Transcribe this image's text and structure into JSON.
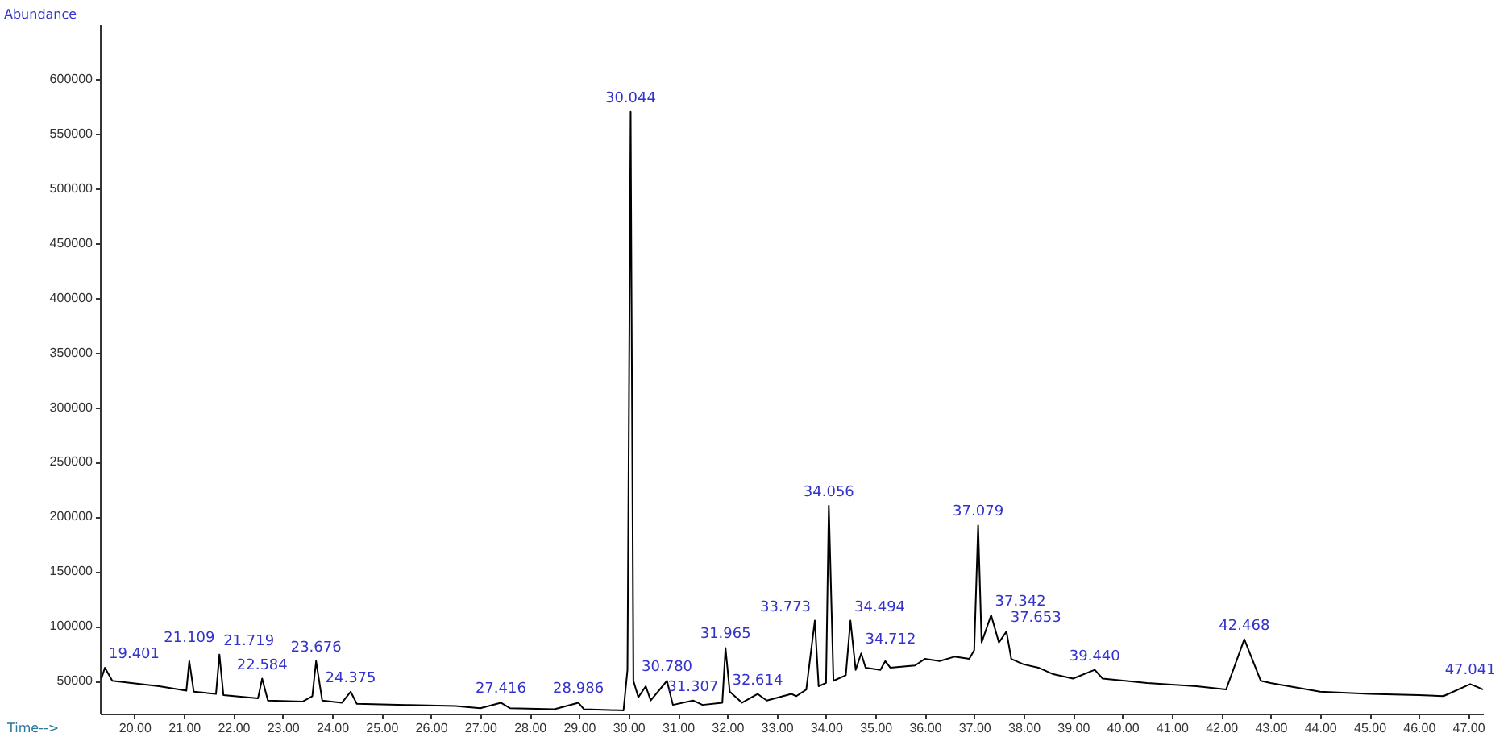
{
  "chart_data": {
    "type": "line",
    "xlabel": "Time-->",
    "ylabel": "Abundance",
    "x": [
      19.33,
      19.4,
      19.55,
      20.5,
      21.05,
      21.109,
      21.2,
      21.65,
      21.719,
      21.8,
      22.5,
      22.584,
      22.7,
      23.4,
      23.6,
      23.676,
      23.8,
      24.2,
      24.375,
      24.5,
      25.5,
      26.5,
      27.0,
      27.416,
      27.6,
      28.5,
      28.986,
      29.1,
      29.9,
      29.98,
      30.044,
      30.1,
      30.2,
      30.35,
      30.45,
      30.78,
      30.9,
      31.307,
      31.5,
      31.9,
      31.965,
      32.05,
      32.3,
      32.614,
      32.8,
      33.3,
      33.4,
      33.6,
      33.773,
      33.85,
      34.0,
      34.056,
      34.15,
      34.4,
      34.494,
      34.6,
      34.712,
      34.8,
      35.1,
      35.2,
      35.3,
      35.8,
      36.0,
      36.3,
      36.6,
      36.9,
      37.0,
      37.079,
      37.15,
      37.342,
      37.5,
      37.653,
      37.75,
      38.0,
      38.3,
      38.6,
      39.0,
      39.44,
      39.6,
      40.5,
      41.5,
      42.1,
      42.468,
      42.8,
      43.0,
      44.0,
      45.0,
      46.0,
      46.5,
      47.041,
      47.2,
      47.3
    ],
    "series": [
      {
        "color": "#000000",
        "values": [
          52000,
          62000,
          50000,
          45000,
          41000,
          68000,
          40000,
          38000,
          74000,
          37000,
          34000,
          52000,
          32000,
          31000,
          36000,
          68000,
          32000,
          30000,
          40000,
          29000,
          28000,
          27000,
          25000,
          30000,
          25000,
          24000,
          30000,
          24000,
          23000,
          60000,
          570000,
          50000,
          35000,
          45000,
          32000,
          50000,
          28000,
          32000,
          28000,
          30000,
          80000,
          40000,
          30000,
          38000,
          32000,
          38000,
          36000,
          42000,
          105000,
          45000,
          48000,
          210000,
          50000,
          55000,
          105000,
          60000,
          75000,
          62000,
          60000,
          68000,
          62000,
          64000,
          70000,
          68000,
          72000,
          70000,
          78000,
          192000,
          85000,
          110000,
          85000,
          95000,
          70000,
          65000,
          62000,
          56000,
          52000,
          60000,
          52000,
          48000,
          45000,
          42000,
          88000,
          50000,
          48000,
          40000,
          38000,
          37000,
          36000,
          47000,
          44000,
          42000
        ]
      }
    ],
    "xlim": [
      19.3,
      47.3
    ],
    "ylim": [
      20000,
      650000
    ],
    "xticks": [
      {
        "value": 20,
        "label": "20.00"
      },
      {
        "value": 21,
        "label": "21.00"
      },
      {
        "value": 22,
        "label": "22.00"
      },
      {
        "value": 23,
        "label": "23.00"
      },
      {
        "value": 24,
        "label": "24.00"
      },
      {
        "value": 25,
        "label": "25.00"
      },
      {
        "value": 26,
        "label": "26.00"
      },
      {
        "value": 27,
        "label": "27.00"
      },
      {
        "value": 28,
        "label": "28.00"
      },
      {
        "value": 29,
        "label": "29.00"
      },
      {
        "value": 30,
        "label": "30.00"
      },
      {
        "value": 31,
        "label": "31.00"
      },
      {
        "value": 32,
        "label": "32.00"
      },
      {
        "value": 33,
        "label": "33.00"
      },
      {
        "value": 34,
        "label": "34.00"
      },
      {
        "value": 35,
        "label": "35.00"
      },
      {
        "value": 36,
        "label": "36.00"
      },
      {
        "value": 37,
        "label": "37.00"
      },
      {
        "value": 38,
        "label": "38.00"
      },
      {
        "value": 39,
        "label": "39.00"
      },
      {
        "value": 40,
        "label": "40.00"
      },
      {
        "value": 41,
        "label": "41.00"
      },
      {
        "value": 42,
        "label": "42.00"
      },
      {
        "value": 43,
        "label": "43.00"
      },
      {
        "value": 44,
        "label": "44.00"
      },
      {
        "value": 45,
        "label": "45.00"
      },
      {
        "value": 46,
        "label": "46.00"
      },
      {
        "value": 47,
        "label": "47.00"
      }
    ],
    "yticks": [
      50000,
      100000,
      150000,
      200000,
      250000,
      300000,
      350000,
      400000,
      450000,
      500000,
      550000,
      600000
    ],
    "line_style": "solid",
    "annotations": [
      {
        "text": "19.401",
        "x": 19.4,
        "y": 62000
      },
      {
        "text": "21.109",
        "x": 21.109,
        "y": 68000
      },
      {
        "text": "21.719",
        "x": 21.719,
        "y": 74000
      },
      {
        "text": "22.584",
        "x": 22.584,
        "y": 52000
      },
      {
        "text": "23.676",
        "x": 23.676,
        "y": 68000
      },
      {
        "text": "24.375",
        "x": 24.375,
        "y": 40000
      },
      {
        "text": "27.416",
        "x": 27.416,
        "y": 30000
      },
      {
        "text": "28.986",
        "x": 28.986,
        "y": 30000
      },
      {
        "text": "30.044",
        "x": 30.044,
        "y": 570000
      },
      {
        "text": "30.780",
        "x": 30.78,
        "y": 50000
      },
      {
        "text": "31.307",
        "x": 31.307,
        "y": 32000
      },
      {
        "text": "31.965",
        "x": 31.965,
        "y": 80000
      },
      {
        "text": "32.614",
        "x": 32.614,
        "y": 38000
      },
      {
        "text": "33.773",
        "x": 33.773,
        "y": 105000
      },
      {
        "text": "34.056",
        "x": 34.056,
        "y": 210000
      },
      {
        "text": "34.494",
        "x": 34.494,
        "y": 105000
      },
      {
        "text": "34.712",
        "x": 34.712,
        "y": 75000
      },
      {
        "text": "37.079",
        "x": 37.079,
        "y": 192000
      },
      {
        "text": "37.342",
        "x": 37.342,
        "y": 110000
      },
      {
        "text": "37.653",
        "x": 37.653,
        "y": 95000
      },
      {
        "text": "39.440",
        "x": 39.44,
        "y": 60000
      },
      {
        "text": "42.468",
        "x": 42.468,
        "y": 88000
      },
      {
        "text": "47.041",
        "x": 47.041,
        "y": 47000
      }
    ]
  }
}
